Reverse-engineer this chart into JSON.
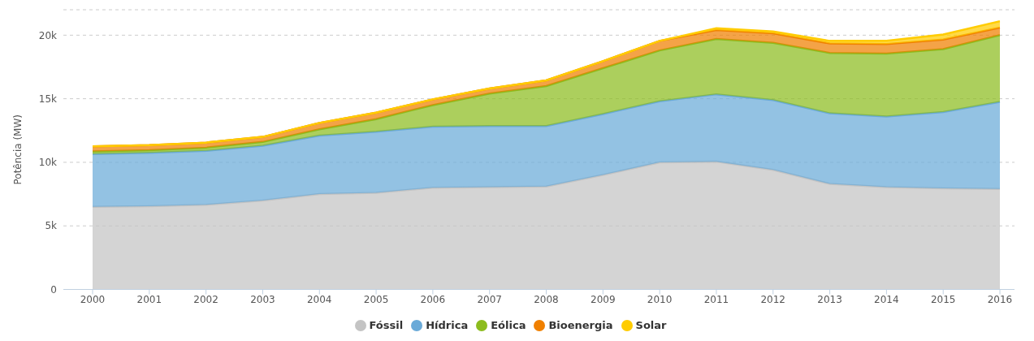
{
  "chart_data": {
    "type": "area",
    "stacked": true,
    "ylabel": "Potência (MW)",
    "categories": [
      "2000",
      "2001",
      "2002",
      "2003",
      "2004",
      "2005",
      "2006",
      "2007",
      "2008",
      "2009",
      "2010",
      "2011",
      "2012",
      "2013",
      "2014",
      "2015",
      "2016"
    ],
    "series": [
      {
        "name": "Fóssil",
        "color": "#c4c4c4",
        "values": [
          6500,
          6550,
          6650,
          7000,
          7500,
          7600,
          8000,
          8050,
          8100,
          9000,
          10000,
          10050,
          9400,
          8300,
          8050,
          7950,
          7900
        ]
      },
      {
        "name": "Hídrica",
        "color": "#6aaad8",
        "values": [
          4150,
          4200,
          4250,
          4300,
          4600,
          4800,
          4800,
          4800,
          4750,
          4800,
          4800,
          5300,
          5500,
          5550,
          5550,
          6000,
          6850
        ]
      },
      {
        "name": "Eólica",
        "color": "#8cbc1e",
        "values": [
          200,
          200,
          250,
          300,
          500,
          1000,
          1700,
          2550,
          3150,
          3600,
          4000,
          4350,
          4500,
          4750,
          4950,
          4950,
          5250
        ]
      },
      {
        "name": "Bioenergia",
        "color": "#f08000",
        "values": [
          400,
          400,
          400,
          400,
          500,
          500,
          450,
          400,
          450,
          550,
          750,
          700,
          750,
          750,
          750,
          750,
          600
        ]
      },
      {
        "name": "Solar",
        "color": "#ffcc00",
        "values": [
          0,
          0,
          0,
          0,
          0,
          0,
          0,
          0,
          0,
          0,
          0,
          150,
          150,
          200,
          250,
          400,
          500
        ]
      }
    ],
    "ylim": [
      0,
      22000
    ],
    "yticks": [
      0,
      {
        "value": 5000,
        "label": "5k"
      },
      {
        "value": 10000,
        "label": "10k"
      },
      {
        "value": 15000,
        "label": "15k"
      },
      {
        "value": 20000,
        "label": "20k"
      }
    ],
    "grid": "y",
    "legend": "bottom"
  }
}
